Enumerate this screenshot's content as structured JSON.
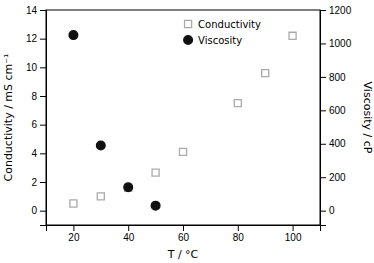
{
  "chart_data": {
    "type": "scatter",
    "xlabel": "T / °C",
    "ylabel": "Conductivity / mS cm⁻¹",
    "y2label": "Viscosity / cP",
    "xlim": [
      10,
      110
    ],
    "xticks": [
      20,
      40,
      60,
      80,
      100
    ],
    "ylim": [
      -1,
      14
    ],
    "yticks": [
      0,
      2,
      4,
      6,
      8,
      10,
      12,
      14
    ],
    "y2lim": [
      -85.7,
      1200
    ],
    "y2ticks": [
      0,
      200,
      400,
      600,
      800,
      1000,
      1200
    ],
    "legend": "top",
    "series": [
      {
        "name": "Conductivity",
        "x": [
          20,
          30,
          40,
          50,
          60,
          80,
          90,
          100
        ],
        "values": [
          0.5,
          1.0,
          1.6,
          2.65,
          4.1,
          7.5,
          9.6,
          12.2
        ],
        "color": "#aaaaaa",
        "marker": "square"
      },
      {
        "name": "Viscosity",
        "x": [
          20,
          30,
          40,
          50
        ],
        "values": [
          1050,
          390,
          140,
          30
        ],
        "color": "#111111",
        "marker": "circle",
        "axis": "y2"
      }
    ]
  }
}
